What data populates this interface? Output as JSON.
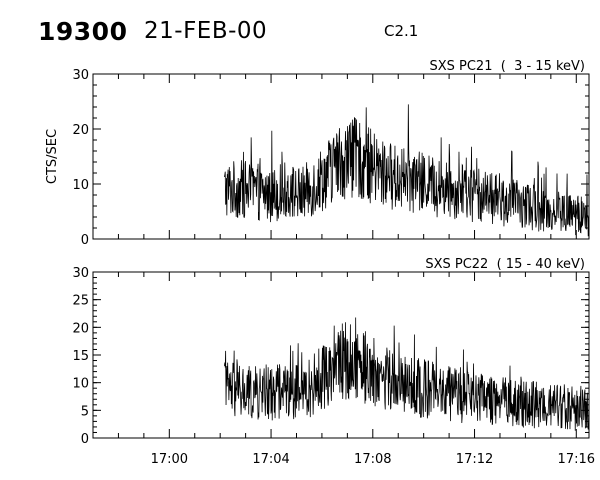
{
  "header": {
    "event_number": "19300",
    "date": "21-FEB-00",
    "goes_class": "C2.1"
  },
  "chart_data": [
    {
      "type": "line",
      "title": "SXS PC21  (  3 - 15 keV)",
      "ylabel": "CTS/SEC",
      "xlabel": "",
      "ylim": [
        0,
        30
      ],
      "yticks": [
        "0",
        "10",
        "20",
        "30"
      ],
      "xlim": [
        "16:57:00",
        "17:16:30"
      ],
      "xticks": [],
      "series": [
        {
          "x_start": "17:02:10",
          "x_end": "17:16:30",
          "points": [
            {
              "t": "17:02:10",
              "y": 9
            },
            {
              "t": "17:03:00",
              "y": 9
            },
            {
              "t": "17:04:00",
              "y": 8
            },
            {
              "t": "17:04:40",
              "y": 9
            },
            {
              "t": "17:05:10",
              "y": 8
            },
            {
              "t": "17:05:30",
              "y": 9
            },
            {
              "t": "17:06:00",
              "y": 11
            },
            {
              "t": "17:06:40",
              "y": 14
            },
            {
              "t": "17:07:10",
              "y": 15
            },
            {
              "t": "17:07:40",
              "y": 14
            },
            {
              "t": "17:08:20",
              "y": 12
            },
            {
              "t": "17:09:00",
              "y": 11
            },
            {
              "t": "17:10:00",
              "y": 10
            },
            {
              "t": "17:11:00",
              "y": 9
            },
            {
              "t": "17:12:00",
              "y": 8
            },
            {
              "t": "17:13:00",
              "y": 7
            },
            {
              "t": "17:14:00",
              "y": 6
            },
            {
              "t": "17:15:00",
              "y": 5
            },
            {
              "t": "17:16:30",
              "y": 4
            }
          ]
        }
      ]
    },
    {
      "type": "line",
      "title": "SXS PC22  ( 15 - 40 keV)",
      "ylabel": "",
      "xlabel": "",
      "ylim": [
        0,
        30
      ],
      "yticks": [
        "0",
        "5",
        "10",
        "15",
        "20",
        "25",
        "30"
      ],
      "xlim": [
        "16:57:00",
        "17:16:30"
      ],
      "xticks": [
        "17:00",
        "17:04",
        "17:08",
        "17:12",
        "17:16"
      ],
      "series": [
        {
          "x_start": "17:02:10",
          "x_end": "17:16:30",
          "points": [
            {
              "t": "17:02:10",
              "y": 9
            },
            {
              "t": "17:03:00",
              "y": 8
            },
            {
              "t": "17:04:00",
              "y": 8
            },
            {
              "t": "17:04:40",
              "y": 9
            },
            {
              "t": "17:05:10",
              "y": 8
            },
            {
              "t": "17:05:30",
              "y": 9
            },
            {
              "t": "17:06:00",
              "y": 11
            },
            {
              "t": "17:06:40",
              "y": 14
            },
            {
              "t": "17:07:10",
              "y": 14
            },
            {
              "t": "17:07:40",
              "y": 13
            },
            {
              "t": "17:08:20",
              "y": 11
            },
            {
              "t": "17:09:00",
              "y": 10
            },
            {
              "t": "17:10:00",
              "y": 9
            },
            {
              "t": "17:11:00",
              "y": 8
            },
            {
              "t": "17:12:00",
              "y": 7
            },
            {
              "t": "17:13:00",
              "y": 7
            },
            {
              "t": "17:14:00",
              "y": 6
            },
            {
              "t": "17:15:00",
              "y": 6
            },
            {
              "t": "17:16:30",
              "y": 5
            }
          ]
        }
      ]
    }
  ],
  "colors": {
    "background": "#ffffff",
    "foreground": "#000000"
  }
}
